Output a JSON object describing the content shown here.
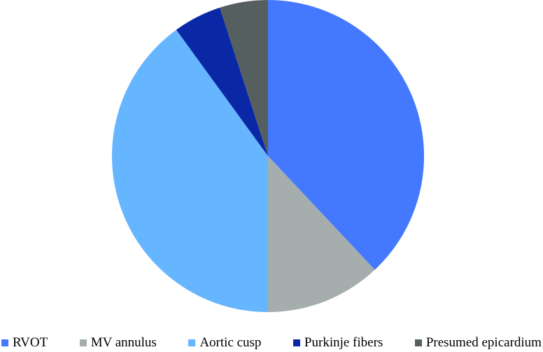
{
  "chart_data": {
    "type": "pie",
    "title": "",
    "legend_position": "bottom",
    "start_angle": "12 o'clock",
    "direction": "clockwise",
    "slices": [
      {
        "label": "RVOT",
        "value": 38,
        "color": "#4479FF"
      },
      {
        "label": "MV annulus",
        "value": 12,
        "color": "#A5AEAD"
      },
      {
        "label": "Aortic cusp",
        "value": 40,
        "color": "#66B5FF"
      },
      {
        "label": "Purkinje fibers",
        "value": 5,
        "color": "#0A28A6"
      },
      {
        "label": "Presumed epicardium",
        "value": 5,
        "color": "#555F60"
      }
    ]
  }
}
